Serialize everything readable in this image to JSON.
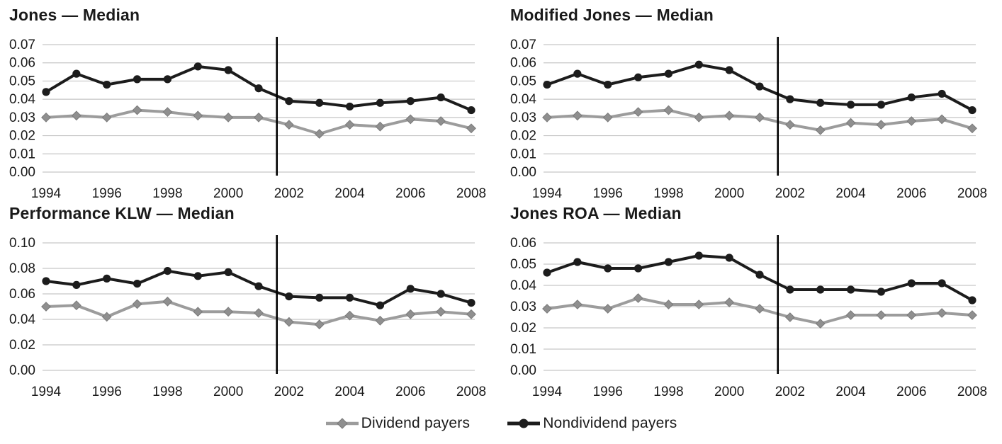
{
  "figure": {
    "description": "Four line charts comparing median discretionary accruals of dividend payers vs nondividend payers, 1994-2008, with a vertical divider between 2001 and 2002"
  },
  "style": {
    "background": "#ffffff",
    "grid_color": "#c6c6c6",
    "text_color": "#1a1a1a",
    "vline_color": "#000000",
    "dividend_color": "#9c9c9c",
    "dividend_marker_fill": "#8f8f8f",
    "dividend_marker_stroke": "#7a7a7a",
    "nondividend_color": "#1c1c1c"
  },
  "legend": {
    "items": [
      {
        "label": "Dividend payers",
        "marker": "diamond",
        "color": "#9c9c9c",
        "marker_fill": "#8f8f8f",
        "marker_stroke": "#7a7a7a"
      },
      {
        "label": "Nondividend payers",
        "marker": "circle",
        "color": "#1c1c1c",
        "marker_fill": "#1c1c1c",
        "marker_stroke": "#1c1c1c"
      }
    ]
  },
  "chart_data": [
    {
      "type": "line",
      "title": "Jones — Median",
      "x": [
        1994,
        1995,
        1996,
        1997,
        1998,
        1999,
        2000,
        2001,
        2002,
        2003,
        2004,
        2005,
        2006,
        2007,
        2008
      ],
      "x_tick_labels": [
        "1994",
        "1996",
        "1998",
        "2000",
        "2002",
        "2004",
        "2006",
        "2008"
      ],
      "ylim": [
        0,
        0.07
      ],
      "y_ticks": [
        "0.00",
        "0.01",
        "0.02",
        "0.03",
        "0.04",
        "0.05",
        "0.06",
        "0.07"
      ],
      "grid": "horizontal",
      "vline_x": 2001.6,
      "xlabel": "",
      "ylabel": "",
      "series": [
        {
          "name": "Dividend payers",
          "marker": "diamond",
          "color": "#9c9c9c",
          "marker_fill": "#8f8f8f",
          "marker_stroke": "#7a7a7a",
          "values": [
            0.03,
            0.031,
            0.03,
            0.034,
            0.033,
            0.031,
            0.03,
            0.03,
            0.026,
            0.021,
            0.026,
            0.025,
            0.029,
            0.028,
            0.024
          ]
        },
        {
          "name": "Nondividend payers",
          "marker": "circle",
          "color": "#1c1c1c",
          "marker_fill": "#1c1c1c",
          "marker_stroke": "#1c1c1c",
          "values": [
            0.044,
            0.054,
            0.048,
            0.051,
            0.051,
            0.058,
            0.056,
            0.046,
            0.039,
            0.038,
            0.036,
            0.038,
            0.039,
            0.041,
            0.034
          ]
        }
      ]
    },
    {
      "type": "line",
      "title": "Modified Jones — Median",
      "x": [
        1994,
        1995,
        1996,
        1997,
        1998,
        1999,
        2000,
        2001,
        2002,
        2003,
        2004,
        2005,
        2006,
        2007,
        2008
      ],
      "x_tick_labels": [
        "1994",
        "1996",
        "1998",
        "2000",
        "2002",
        "2004",
        "2006",
        "2008"
      ],
      "ylim": [
        0,
        0.07
      ],
      "y_ticks": [
        "0.00",
        "0.01",
        "0.02",
        "0.03",
        "0.04",
        "0.05",
        "0.06",
        "0.07"
      ],
      "grid": "horizontal",
      "vline_x": 2001.6,
      "xlabel": "",
      "ylabel": "",
      "series": [
        {
          "name": "Dividend payers",
          "marker": "diamond",
          "color": "#9c9c9c",
          "marker_fill": "#8f8f8f",
          "marker_stroke": "#7a7a7a",
          "values": [
            0.03,
            0.031,
            0.03,
            0.033,
            0.034,
            0.03,
            0.031,
            0.03,
            0.026,
            0.023,
            0.027,
            0.026,
            0.028,
            0.029,
            0.024
          ]
        },
        {
          "name": "Nondividend payers",
          "marker": "circle",
          "color": "#1c1c1c",
          "marker_fill": "#1c1c1c",
          "marker_stroke": "#1c1c1c",
          "values": [
            0.048,
            0.054,
            0.048,
            0.052,
            0.054,
            0.059,
            0.056,
            0.047,
            0.04,
            0.038,
            0.037,
            0.037,
            0.041,
            0.043,
            0.034
          ]
        }
      ]
    },
    {
      "type": "line",
      "title": "Performance KLW — Median",
      "x": [
        1994,
        1995,
        1996,
        1997,
        1998,
        1999,
        2000,
        2001,
        2002,
        2003,
        2004,
        2005,
        2006,
        2007,
        2008
      ],
      "x_tick_labels": [
        "1994",
        "1996",
        "1998",
        "2000",
        "2002",
        "2004",
        "2006",
        "2008"
      ],
      "ylim": [
        0,
        0.1
      ],
      "y_ticks": [
        "0.00",
        "0.02",
        "0.04",
        "0.06",
        "0.08",
        "0.10"
      ],
      "grid": "horizontal",
      "vline_x": 2001.6,
      "xlabel": "",
      "ylabel": "",
      "series": [
        {
          "name": "Dividend payers",
          "marker": "diamond",
          "color": "#9c9c9c",
          "marker_fill": "#8f8f8f",
          "marker_stroke": "#7a7a7a",
          "values": [
            0.05,
            0.051,
            0.042,
            0.052,
            0.054,
            0.046,
            0.046,
            0.045,
            0.038,
            0.036,
            0.043,
            0.039,
            0.044,
            0.046,
            0.044
          ]
        },
        {
          "name": "Nondividend payers",
          "marker": "circle",
          "color": "#1c1c1c",
          "marker_fill": "#1c1c1c",
          "marker_stroke": "#1c1c1c",
          "values": [
            0.07,
            0.067,
            0.072,
            0.068,
            0.078,
            0.074,
            0.077,
            0.066,
            0.058,
            0.057,
            0.057,
            0.051,
            0.064,
            0.06,
            0.053
          ]
        }
      ]
    },
    {
      "type": "line",
      "title": "Jones ROA — Median",
      "x": [
        1994,
        1995,
        1996,
        1997,
        1998,
        1999,
        2000,
        2001,
        2002,
        2003,
        2004,
        2005,
        2006,
        2007,
        2008
      ],
      "x_tick_labels": [
        "1994",
        "1996",
        "1998",
        "2000",
        "2002",
        "2004",
        "2006",
        "2008"
      ],
      "ylim": [
        0,
        0.06
      ],
      "y_ticks": [
        "0.00",
        "0.01",
        "0.02",
        "0.03",
        "0.04",
        "0.05",
        "0.06"
      ],
      "grid": "horizontal",
      "vline_x": 2001.6,
      "xlabel": "",
      "ylabel": "",
      "series": [
        {
          "name": "Dividend payers",
          "marker": "diamond",
          "color": "#9c9c9c",
          "marker_fill": "#8f8f8f",
          "marker_stroke": "#7a7a7a",
          "values": [
            0.029,
            0.031,
            0.029,
            0.034,
            0.031,
            0.031,
            0.032,
            0.029,
            0.025,
            0.022,
            0.026,
            0.026,
            0.026,
            0.027,
            0.026
          ]
        },
        {
          "name": "Nondividend payers",
          "marker": "circle",
          "color": "#1c1c1c",
          "marker_fill": "#1c1c1c",
          "marker_stroke": "#1c1c1c",
          "values": [
            0.046,
            0.051,
            0.048,
            0.048,
            0.051,
            0.054,
            0.053,
            0.045,
            0.038,
            0.038,
            0.038,
            0.037,
            0.041,
            0.041,
            0.033
          ]
        }
      ]
    }
  ]
}
